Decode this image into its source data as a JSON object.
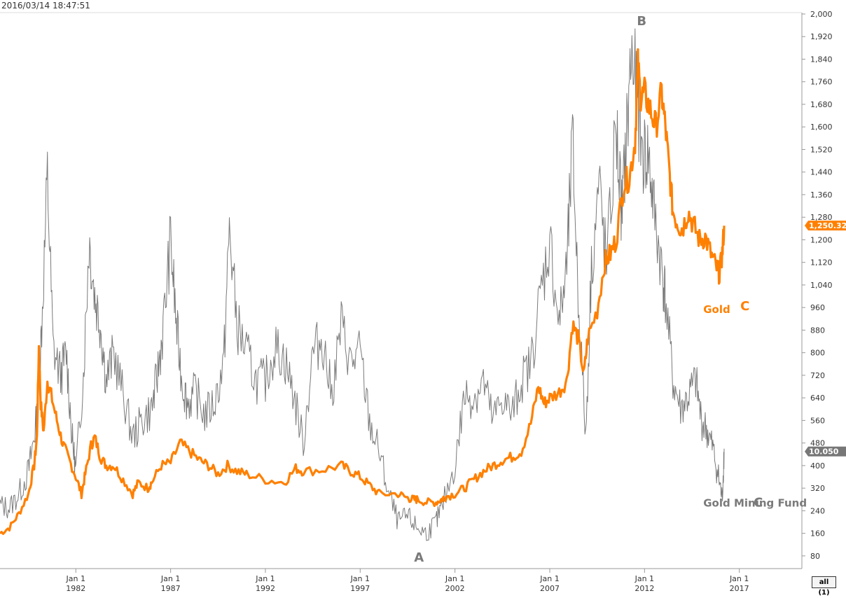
{
  "header": {
    "timestamp": "2016/03/14 18:47:51"
  },
  "controls": {
    "all_button": "all (1)"
  },
  "colors": {
    "gold": "#ff8000",
    "fund": "#7a7a7a",
    "fund_badge": "#777777"
  },
  "chart_data": {
    "type": "line",
    "title": "",
    "xlabel": "",
    "ylabel": "",
    "xlim": [
      1978.0,
      2020.3
    ],
    "ylim": [
      40,
      2000
    ],
    "yticks": [
      80,
      160,
      240,
      320,
      400,
      480,
      560,
      640,
      720,
      800,
      880,
      960,
      1040,
      1120,
      1200,
      1280,
      1360,
      1440,
      1520,
      1600,
      1680,
      1760,
      1840,
      1920,
      2000
    ],
    "ytick_labels": [
      "80",
      "160",
      "240",
      "320",
      "400",
      "480",
      "560",
      "640",
      "720",
      "800",
      "880",
      "960",
      "1,040",
      "1,120",
      "1,200",
      "1,280",
      "1,360",
      "1,440",
      "1,520",
      "1,600",
      "1,680",
      "1,760",
      "1,840",
      "1,920",
      "2,000"
    ],
    "xticks": [
      {
        "x": 1982,
        "line1": "Jan 1",
        "line2": "1982"
      },
      {
        "x": 1987,
        "line1": "Jan 1",
        "line2": "1987"
      },
      {
        "x": 1992,
        "line1": "Jan 1",
        "line2": "1992"
      },
      {
        "x": 1997,
        "line1": "Jan 1",
        "line2": "1997"
      },
      {
        "x": 2002,
        "line1": "Jan 1",
        "line2": "2002"
      },
      {
        "x": 2007,
        "line1": "Jan 1",
        "line2": "2007"
      },
      {
        "x": 2012,
        "line1": "Jan 1",
        "line2": "2012"
      },
      {
        "x": 2017,
        "line1": "Jan 1",
        "line2": "2017"
      }
    ],
    "grid": false,
    "series": [
      {
        "name": "Gold",
        "x": [
          1978.0,
          1978.5,
          1979.0,
          1979.5,
          1979.8,
          1979.95,
          1980.05,
          1980.15,
          1980.3,
          1980.5,
          1980.7,
          1981.0,
          1981.3,
          1981.6,
          1982.0,
          1982.3,
          1982.5,
          1982.8,
          1983.0,
          1983.3,
          1983.6,
          1984.0,
          1984.5,
          1985.0,
          1985.3,
          1985.8,
          1986.0,
          1986.5,
          1987.0,
          1987.5,
          1988.0,
          1988.5,
          1989.0,
          1989.5,
          1990.0,
          1990.5,
          1991.0,
          1992.0,
          1993.0,
          1993.6,
          1994.0,
          1995.0,
          1996.0,
          1996.5,
          1997.0,
          1997.5,
          1998.0,
          1999.0,
          1999.5,
          1999.8,
          2000.0,
          2000.5,
          2001.0,
          2001.3,
          2001.5,
          2002.0,
          2002.5,
          2003.0,
          2003.5,
          2004.0,
          2004.5,
          2005.0,
          2005.5,
          2006.0,
          2006.4,
          2006.7,
          2007.0,
          2007.5,
          2007.9,
          2008.2,
          2008.5,
          2008.8,
          2009.0,
          2009.5,
          2009.9,
          2010.2,
          2010.5,
          2010.9,
          2011.2,
          2011.5,
          2011.65,
          2011.8,
          2012.0,
          2012.3,
          2012.6,
          2012.9,
          2013.1,
          2013.3,
          2013.5,
          2013.8,
          2014.0,
          2014.3,
          2014.6,
          2014.9,
          2015.2,
          2015.5,
          2015.8,
          2015.95,
          2016.1,
          2016.2
        ],
        "y": [
          160,
          180,
          230,
          300,
          400,
          500,
          820,
          620,
          520,
          700,
          650,
          560,
          480,
          430,
          360,
          300,
          370,
          470,
          500,
          430,
          400,
          400,
          350,
          300,
          340,
          320,
          340,
          400,
          410,
          480,
          450,
          420,
          400,
          370,
          400,
          380,
          370,
          350,
          340,
          390,
          380,
          385,
          400,
          380,
          360,
          330,
          300,
          300,
          285,
          280,
          280,
          270,
          270,
          280,
          290,
          300,
          320,
          350,
          380,
          400,
          420,
          430,
          450,
          550,
          680,
          620,
          640,
          660,
          700,
          900,
          850,
          720,
          850,
          950,
          1120,
          1150,
          1200,
          1400,
          1420,
          1550,
          1820,
          1700,
          1720,
          1660,
          1600,
          1720,
          1600,
          1450,
          1300,
          1250,
          1240,
          1300,
          1250,
          1200,
          1210,
          1150,
          1100,
          1080,
          1150,
          1250
        ]
      },
      {
        "name": "Gold Mining Fund",
        "x": [
          1978.0,
          1978.5,
          1979.0,
          1979.5,
          1979.8,
          1980.0,
          1980.2,
          1980.5,
          1980.8,
          1981.2,
          1981.5,
          1981.8,
          1982.0,
          1982.4,
          1982.7,
          1983.0,
          1983.3,
          1983.6,
          1984.0,
          1984.5,
          1985.0,
          1985.5,
          1986.0,
          1986.3,
          1986.6,
          1987.0,
          1987.3,
          1987.6,
          1987.9,
          1988.3,
          1988.8,
          1989.3,
          1989.8,
          1990.1,
          1990.5,
          1991.0,
          1991.5,
          1992.0,
          1992.5,
          1993.0,
          1993.5,
          1994.0,
          1994.5,
          1995.0,
          1995.5,
          1996.0,
          1996.5,
          1997.0,
          1997.5,
          1998.0,
          1998.5,
          1999.0,
          1999.5,
          2000.0,
          2000.5,
          2001.0,
          2001.3,
          2002.0,
          2002.5,
          2003.0,
          2003.5,
          2004.0,
          2004.5,
          2005.0,
          2005.5,
          2006.0,
          2006.5,
          2007.0,
          2007.5,
          2007.9,
          2008.2,
          2008.5,
          2008.9,
          2009.2,
          2009.6,
          2010.0,
          2010.5,
          2010.8,
          2011.0,
          2011.3,
          2011.6,
          2011.9,
          2012.2,
          2012.5,
          2012.9,
          2013.1,
          2013.5,
          2013.9,
          2014.3,
          2014.7,
          2015.0,
          2015.3,
          2015.6,
          2015.9,
          2016.1,
          2016.2
        ],
        "y": [
          260,
          250,
          300,
          380,
          500,
          600,
          900,
          1420,
          820,
          720,
          800,
          500,
          380,
          720,
          1200,
          1000,
          900,
          700,
          800,
          650,
          500,
          560,
          600,
          720,
          880,
          1200,
          900,
          700,
          620,
          660,
          580,
          620,
          760,
          1240,
          900,
          800,
          700,
          700,
          820,
          780,
          650,
          480,
          800,
          850,
          650,
          900,
          760,
          800,
          550,
          450,
          300,
          200,
          220,
          180,
          160,
          200,
          250,
          400,
          650,
          640,
          700,
          560,
          640,
          580,
          700,
          760,
          1000,
          1200,
          900,
          1100,
          1550,
          1000,
          500,
          1100,
          1400,
          1100,
          1600,
          1300,
          1500,
          1860,
          1720,
          1500,
          1500,
          1300,
          1100,
          1000,
          700,
          600,
          640,
          700,
          560,
          520,
          460,
          360,
          280,
          460
        ]
      }
    ],
    "value_badges": [
      {
        "series": "Gold",
        "value": 1250.32,
        "label": "1,250.32"
      },
      {
        "series": "Gold Mining Fund",
        "value": 450,
        "label": "10.050"
      }
    ],
    "annotations": [
      {
        "text": "B",
        "x": 2011.85,
        "y": 1960,
        "color": "fund"
      },
      {
        "text": "A",
        "x": 2000.1,
        "y": 60,
        "color": "fund"
      },
      {
        "text": "Gold",
        "x": 2015.1,
        "y": 940,
        "color": "gold"
      },
      {
        "text": "C",
        "x": 2017.3,
        "y": 950,
        "color": "gold"
      },
      {
        "text": "Gold Mining Fund",
        "x": 2015.1,
        "y": 255,
        "color": "fund"
      },
      {
        "text": "C",
        "x": 2018.0,
        "y": 255,
        "color": "fund"
      }
    ]
  }
}
